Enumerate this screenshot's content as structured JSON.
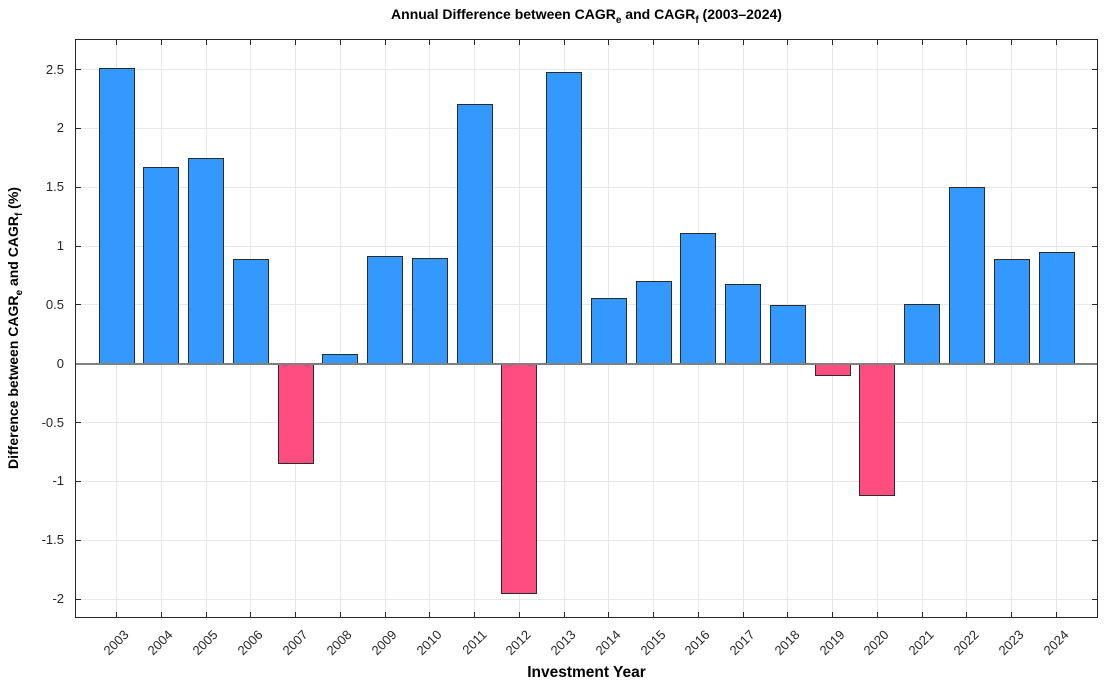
{
  "title": {
    "part1": "Annual Difference between CAGR",
    "sub1": "e",
    "part2": " and CAGR",
    "sub2": "f",
    "part3": " (2003–2024)"
  },
  "axes": {
    "ylabel": {
      "part1": "Difference between CAGR",
      "sub1": "e",
      "part2": " and CAGR",
      "sub2": "f",
      "part3": " (%)"
    },
    "xlabel": "Investment Year"
  },
  "chart_data": {
    "type": "bar",
    "title": "Annual Difference between CAGR_e and CAGR_f (2003–2024)",
    "xlabel": "Investment Year",
    "ylabel": "Difference between CAGR_e and CAGR_f (%)",
    "categories": [
      "2003",
      "2004",
      "2005",
      "2006",
      "2007",
      "2008",
      "2009",
      "2010",
      "2011",
      "2012",
      "2013",
      "2014",
      "2015",
      "2016",
      "2017",
      "2018",
      "2019",
      "2020",
      "2021",
      "2022",
      "2023",
      "2024"
    ],
    "values": [
      2.51,
      1.67,
      1.75,
      0.89,
      -0.85,
      0.08,
      0.92,
      0.9,
      2.21,
      -1.96,
      2.48,
      0.56,
      0.7,
      1.11,
      0.68,
      0.5,
      -0.1,
      -1.12,
      0.51,
      1.5,
      0.89,
      0.95
    ],
    "yticks": [
      "2.5",
      "2",
      "1.5",
      "1",
      "0.5",
      "0",
      "-0.5",
      "-1",
      "-1.5",
      "-2"
    ],
    "ylim": [
      -2.16,
      2.76
    ],
    "grid": true,
    "legend": null,
    "colors": {
      "positive_bar": "#3399FF",
      "negative_bar": "#FF4D80",
      "bar_edge": "#2B2B2B",
      "zero_line": "#808080",
      "grid_line": "#E8E8E8",
      "axis_frame": "#262626",
      "tick_label": "#262626",
      "background": "#FFFFFF"
    }
  }
}
